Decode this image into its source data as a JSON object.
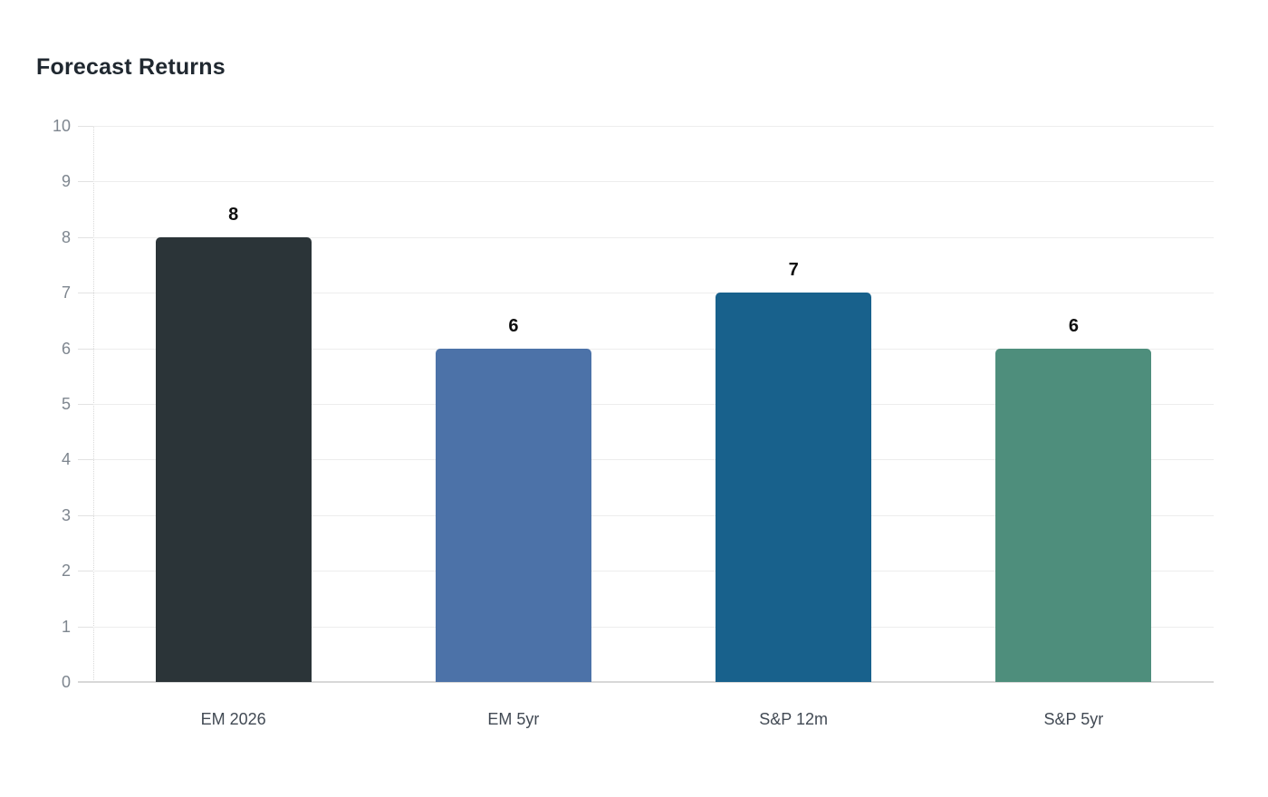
{
  "page": {
    "background_color": "#ffffff"
  },
  "chart_data": {
    "type": "bar",
    "title": "Forecast Returns",
    "categories": [
      "EM 2026",
      "EM 5yr",
      "S&P 12m",
      "S&P 5yr"
    ],
    "values": [
      8,
      6,
      7,
      6
    ],
    "value_labels": [
      "8",
      "6",
      "7",
      "6"
    ],
    "bar_colors": [
      "#2b3438",
      "#4c72a8",
      "#18618c",
      "#4e8e7c"
    ],
    "xlabel": "",
    "ylabel": "",
    "ylim": [
      0,
      10
    ],
    "yticks": [
      0,
      1,
      2,
      3,
      4,
      5,
      6,
      7,
      8,
      9,
      10
    ],
    "ytick_labels": [
      "0",
      "1",
      "2",
      "3",
      "4",
      "5",
      "6",
      "7",
      "8",
      "9",
      "10"
    ],
    "grid": "horizontal",
    "legend_position": "none",
    "colors": {
      "title_text": "#202830",
      "value_label_text": "#0f0f0f",
      "y_tick_label_text": "#7e868f",
      "x_tick_label_text": "#424a54",
      "gridline": "#ededed",
      "axis_baseline": "#d8d8d8",
      "tick_mark": "#e2e2e2"
    }
  }
}
